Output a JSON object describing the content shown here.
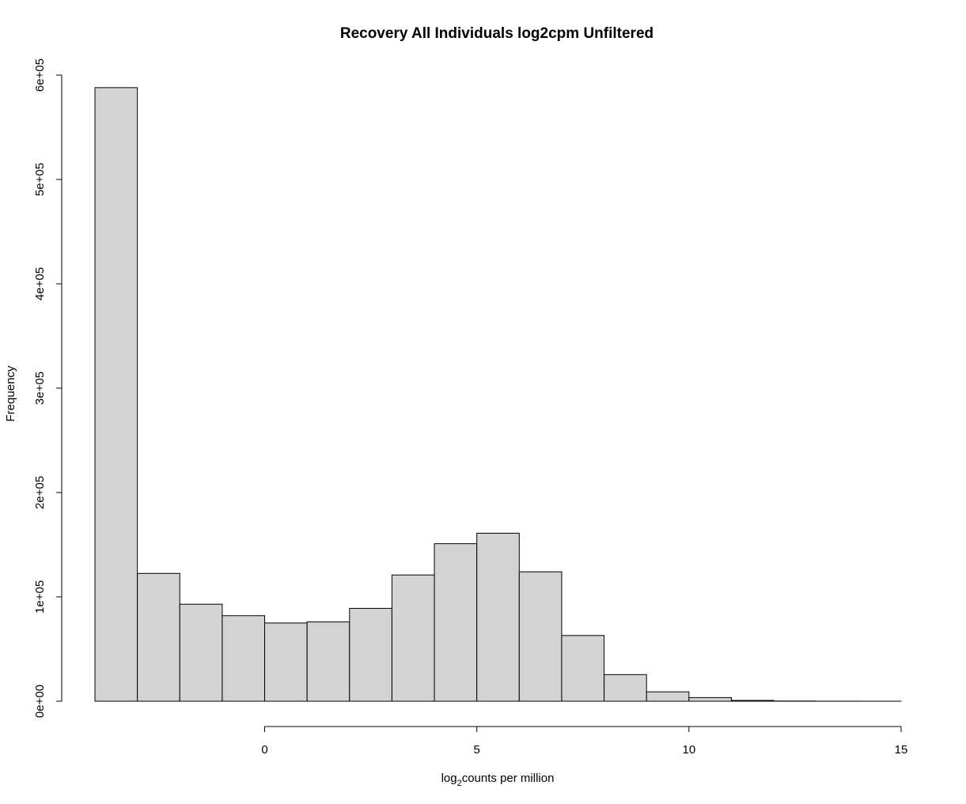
{
  "chart_data": {
    "type": "bar",
    "title": "Recovery All Individuals log2cpm Unfiltered",
    "xlabel_main": "log",
    "xlabel_sub": "2",
    "xlabel_rest": "counts per million",
    "ylabel": "Frequency",
    "bin_width": 1,
    "bins": [
      {
        "x0": -4,
        "x1": -3,
        "count": 588000
      },
      {
        "x0": -3,
        "x1": -2,
        "count": 122500
      },
      {
        "x0": -2,
        "x1": -1,
        "count": 93000
      },
      {
        "x0": -1,
        "x1": 0,
        "count": 82000
      },
      {
        "x0": 0,
        "x1": 1,
        "count": 75000
      },
      {
        "x0": 1,
        "x1": 2,
        "count": 76000
      },
      {
        "x0": 2,
        "x1": 3,
        "count": 89000
      },
      {
        "x0": 3,
        "x1": 4,
        "count": 121000
      },
      {
        "x0": 4,
        "x1": 5,
        "count": 151000
      },
      {
        "x0": 5,
        "x1": 6,
        "count": 161000
      },
      {
        "x0": 6,
        "x1": 7,
        "count": 124000
      },
      {
        "x0": 7,
        "x1": 8,
        "count": 63000
      },
      {
        "x0": 8,
        "x1": 9,
        "count": 25500
      },
      {
        "x0": 9,
        "x1": 10,
        "count": 9000
      },
      {
        "x0": 10,
        "x1": 11,
        "count": 3500
      },
      {
        "x0": 11,
        "x1": 12,
        "count": 800
      },
      {
        "x0": 12,
        "x1": 13,
        "count": 200
      },
      {
        "x0": 13,
        "x1": 14,
        "count": 60
      },
      {
        "x0": 14,
        "x1": 15,
        "count": 20
      }
    ],
    "xlim": [
      -4,
      15
    ],
    "ylim": [
      0,
      600000
    ],
    "x_ticks": [
      0,
      5,
      10,
      15
    ],
    "x_tick_labels": [
      "0",
      "5",
      "10",
      "15"
    ],
    "y_ticks": [
      0,
      100000,
      200000,
      300000,
      400000,
      500000,
      600000
    ],
    "y_tick_labels": [
      "0e+00",
      "1e+05",
      "2e+05",
      "3e+05",
      "4e+05",
      "5e+05",
      "6e+05"
    ],
    "bar_fill": "#d3d3d3",
    "bar_stroke": "#000000",
    "grid": false,
    "legend": "none"
  }
}
